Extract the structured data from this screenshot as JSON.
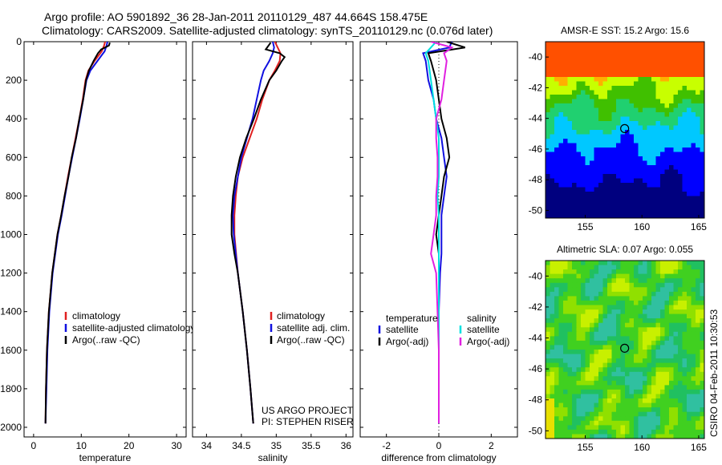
{
  "header": {
    "line1": "Argo profile: AO 5901892_36 28-Jan-2011 20110129_487 44.664S 158.475E",
    "line2": "Climatology: CARS2009. Satellite-adjusted climatology: synTS_20110129.nc (0.076d later)"
  },
  "colors": {
    "climatology": "#e02020",
    "satellite": "#1010e0",
    "argo": "#000000",
    "sal_sat": "#00e0e0",
    "sal_argo": "#e020e0"
  },
  "chart_data": [
    {
      "type": "line",
      "id": "temperature",
      "xlabel": "temperature",
      "ylabel": "",
      "xlim": [
        -2,
        32
      ],
      "ylim": [
        2050,
        0
      ],
      "xticks": [
        0,
        10,
        20,
        30
      ],
      "yticks": [
        0,
        200,
        400,
        600,
        800,
        1000,
        1200,
        1400,
        1600,
        1800,
        2000
      ],
      "legend": [
        "climatology",
        "satellite-adjusted climatology",
        "Argo(..raw -QC)"
      ],
      "series": [
        {
          "name": "climatology",
          "color": "#e02020",
          "depth": [
            0,
            20,
            50,
            100,
            150,
            200,
            300,
            400,
            500,
            600,
            700,
            800,
            900,
            1000,
            1200,
            1400,
            1600,
            1800,
            1980
          ],
          "values": [
            15.0,
            14.8,
            14.3,
            12.8,
            11.5,
            10.9,
            10.3,
            9.6,
            8.8,
            8.0,
            7.2,
            6.5,
            5.8,
            5.0,
            3.9,
            3.2,
            2.8,
            2.6,
            2.5
          ]
        },
        {
          "name": "satellite-adjusted climatology",
          "color": "#1010e0",
          "depth": [
            0,
            20,
            50,
            100,
            150,
            200,
            300,
            400,
            500,
            600,
            700,
            800,
            900,
            1000,
            1200,
            1400,
            1600,
            1800,
            1980
          ],
          "values": [
            15.5,
            15.3,
            14.9,
            13.4,
            11.9,
            11.1,
            10.4,
            9.7,
            8.9,
            8.1,
            7.3,
            6.6,
            5.9,
            5.1,
            4.0,
            3.3,
            2.9,
            2.7,
            2.5
          ]
        },
        {
          "name": "Argo(..raw -QC)",
          "color": "#000000",
          "depth": [
            5,
            20,
            40,
            60,
            100,
            150,
            200,
            300,
            400,
            500,
            600,
            700,
            800,
            900,
            1000,
            1200,
            1400,
            1600,
            1800,
            1980
          ],
          "values": [
            16.0,
            15.8,
            14.2,
            13.5,
            12.6,
            11.6,
            11.0,
            10.4,
            9.6,
            8.9,
            8.0,
            7.3,
            6.5,
            5.8,
            5.0,
            3.9,
            3.2,
            2.8,
            2.6,
            2.5
          ]
        }
      ]
    },
    {
      "type": "line",
      "id": "salinity",
      "xlabel": "salinity",
      "ylabel": "",
      "xlim": [
        33.8,
        36.1
      ],
      "ylim": [
        2050,
        0
      ],
      "xticks": [
        34,
        34.5,
        35,
        35.5,
        36
      ],
      "legend": [
        "climatology",
        "satellite adj. clim.",
        "Argo(..raw -QC)"
      ],
      "annotations": [
        "US ARGO PROJECT",
        "PI: STEPHEN RISER"
      ],
      "series": [
        {
          "name": "climatology",
          "color": "#e02020",
          "depth": [
            0,
            30,
            60,
            100,
            150,
            200,
            300,
            400,
            500,
            600,
            700,
            800,
            900,
            1000,
            1200,
            1400,
            1600,
            1800,
            1980
          ],
          "values": [
            34.98,
            35.02,
            35.06,
            35.05,
            34.98,
            34.9,
            34.8,
            34.72,
            34.62,
            34.52,
            34.45,
            34.42,
            34.4,
            34.4,
            34.45,
            34.52,
            34.58,
            34.63,
            34.67
          ]
        },
        {
          "name": "satellite adj. clim.",
          "color": "#1010e0",
          "depth": [
            0,
            30,
            60,
            100,
            150,
            200,
            300,
            400,
            500,
            600,
            700,
            800,
            900,
            1000,
            1200,
            1400,
            1600,
            1800,
            1980
          ],
          "values": [
            34.95,
            34.97,
            34.95,
            34.9,
            34.82,
            34.78,
            34.72,
            34.66,
            34.58,
            34.5,
            34.45,
            34.4,
            34.38,
            34.39,
            34.45,
            34.52,
            34.58,
            34.63,
            34.67
          ]
        },
        {
          "name": "Argo(..raw -QC)",
          "color": "#000000",
          "depth": [
            5,
            40,
            60,
            80,
            100,
            150,
            200,
            300,
            400,
            500,
            600,
            700,
            800,
            900,
            1000,
            1100,
            1200,
            1400,
            1600,
            1800,
            1980
          ],
          "values": [
            34.92,
            34.85,
            35.05,
            35.12,
            35.08,
            35.0,
            34.9,
            34.78,
            34.68,
            34.57,
            34.48,
            34.42,
            34.38,
            34.36,
            34.36,
            34.4,
            34.45,
            34.52,
            34.58,
            34.63,
            34.67
          ]
        }
      ]
    },
    {
      "type": "line",
      "id": "difference",
      "xlabel": "difference from climatology",
      "ylabel": "",
      "xlim": [
        -3,
        3
      ],
      "ylim": [
        2050,
        0
      ],
      "xticks": [
        -2,
        0,
        2
      ],
      "legend_headers": [
        "temperature",
        "salinity"
      ],
      "legend": [
        "satellite",
        "Argo(-adj)",
        "satellite",
        "Argo(-adj)"
      ],
      "series": [
        {
          "name": "temperature satellite",
          "color": "#1010e0",
          "depth": [
            0,
            30,
            60,
            100,
            200,
            300,
            400,
            500,
            600,
            700,
            800,
            900,
            1000,
            1100,
            1200,
            1400,
            1600,
            1800,
            1980
          ],
          "values": [
            0.5,
            0.4,
            -0.6,
            -0.5,
            -0.4,
            -0.2,
            -0.1,
            0.1,
            0.2,
            0.3,
            0.2,
            0.1,
            0.1,
            0.1,
            0.05,
            0.0,
            0.0,
            0.0,
            0.0
          ]
        },
        {
          "name": "temperature Argo(-adj)",
          "color": "#000000",
          "depth": [
            0,
            30,
            60,
            100,
            200,
            300,
            400,
            500,
            600,
            700,
            800,
            900,
            1000,
            1100,
            1200,
            1400,
            1600,
            1800,
            1980
          ],
          "values": [
            0.3,
            1.0,
            -0.4,
            -0.3,
            -0.1,
            0.0,
            0.1,
            0.3,
            0.4,
            0.2,
            0.1,
            0.0,
            -0.1,
            0.0,
            0.0,
            0.0,
            0.0,
            0.0,
            0.0
          ]
        },
        {
          "name": "salinity satellite",
          "color": "#00e0e0",
          "depth": [
            0,
            30,
            60,
            100,
            200,
            300,
            400,
            500,
            600,
            700,
            800,
            900,
            1000,
            1200,
            1400,
            1600,
            1800,
            1980
          ],
          "values": [
            -0.1,
            -0.3,
            -0.5,
            -0.4,
            -0.3,
            -0.2,
            -0.1,
            0.0,
            0.0,
            0.0,
            -0.05,
            0.0,
            0.0,
            0.0,
            0.0,
            0.0,
            0.0,
            0.0
          ]
        },
        {
          "name": "salinity Argo(-adj)",
          "color": "#e020e0",
          "depth": [
            0,
            30,
            60,
            100,
            200,
            300,
            400,
            500,
            600,
            700,
            800,
            900,
            1000,
            1100,
            1200,
            1400,
            1600,
            1800,
            1980
          ],
          "values": [
            -0.3,
            0.5,
            0.2,
            0.3,
            0.2,
            0.1,
            -0.1,
            -0.1,
            -0.05,
            -0.05,
            -0.1,
            -0.1,
            -0.2,
            -0.3,
            -0.1,
            -0.05,
            0.0,
            0.0,
            0.0
          ]
        }
      ]
    },
    {
      "type": "heatmap",
      "id": "sst",
      "title": "AMSR-E SST: 15.2 Argo: 15.6",
      "xlim": [
        151.5,
        165.5
      ],
      "ylim": [
        -50.5,
        -39
      ],
      "xticks": [
        155,
        160,
        165
      ],
      "yticks": [
        -40,
        -42,
        -44,
        -46,
        -48,
        -50
      ],
      "marker": [
        158.475,
        -44.664
      ]
    },
    {
      "type": "heatmap",
      "id": "sla",
      "title": "Altimetric SLA: 0.07 Argo: 0.055",
      "xlim": [
        151.5,
        165.5
      ],
      "ylim": [
        -50.5,
        -39
      ],
      "xticks": [
        155,
        160,
        165
      ],
      "yticks": [
        -40,
        -42,
        -44,
        -46,
        -48,
        -50
      ],
      "marker": [
        158.475,
        -44.664
      ]
    }
  ],
  "footer": {
    "stamp": "CSIRO 04-Feb-2011 10:30:53"
  }
}
